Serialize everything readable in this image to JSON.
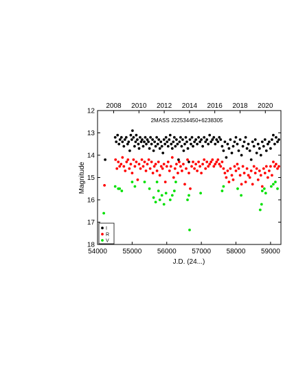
{
  "chart_data": {
    "type": "scatter",
    "title": "2MASS J22534450+6238305",
    "xlabel": "J.D. (24...)",
    "ylabel": "Magnitude",
    "xlim": [
      54000,
      59300
    ],
    "ylim": [
      18,
      12
    ],
    "y_inverted": true,
    "x_ticks": [
      "54000",
      "55000",
      "56000",
      "57000",
      "58000",
      "59000"
    ],
    "x_tick_values": [
      54000,
      55000,
      56000,
      57000,
      58000,
      59000
    ],
    "y_ticks": [
      "12",
      "13",
      "14",
      "15",
      "16",
      "17",
      "18"
    ],
    "y_tick_values": [
      12,
      13,
      14,
      15,
      16,
      17,
      18
    ],
    "top_axis_ticks": [
      "2008",
      "2010",
      "2012",
      "2014",
      "2016",
      "2018",
      "2020"
    ],
    "top_axis_values": [
      54466,
      55197,
      55927,
      56658,
      57388,
      58119,
      58849
    ],
    "grid": false,
    "legend_position": "bottom-left",
    "series": [
      {
        "name": "I",
        "color": "#000000",
        "x": [
          54220,
          54510,
          54540,
          54580,
          54620,
          54650,
          54690,
          54720,
          54760,
          54790,
          54830,
          54870,
          54900,
          54930,
          54960,
          54990,
          55010,
          55040,
          55070,
          55100,
          55120,
          55150,
          55180,
          55200,
          55230,
          55260,
          55290,
          55320,
          55350,
          55380,
          55410,
          55440,
          55470,
          55500,
          55530,
          55560,
          55590,
          55620,
          55650,
          55680,
          55710,
          55740,
          55770,
          55800,
          55830,
          55860,
          55890,
          55920,
          55950,
          55980,
          56010,
          56040,
          56070,
          56100,
          56130,
          56160,
          56190,
          56220,
          56250,
          56280,
          56310,
          56340,
          56370,
          56400,
          56430,
          56460,
          56490,
          56520,
          56550,
          56580,
          56610,
          56640,
          56670,
          56700,
          56730,
          56760,
          56800,
          56840,
          56880,
          56920,
          56960,
          57000,
          57040,
          57080,
          57120,
          57160,
          57200,
          57240,
          57280,
          57320,
          57360,
          57400,
          57440,
          57480,
          57520,
          57560,
          57600,
          57640,
          57680,
          57720,
          57760,
          57800,
          57840,
          57880,
          57920,
          57960,
          58000,
          58040,
          58080,
          58120,
          58160,
          58200,
          58240,
          58280,
          58320,
          58360,
          58400,
          58440,
          58480,
          58520,
          58560,
          58600,
          58640,
          58680,
          58720,
          58760,
          58800,
          58840,
          58880,
          58920,
          58960,
          59000,
          59040,
          59080,
          59120,
          59160,
          59200,
          59240
        ],
        "y": [
          14.2,
          13.2,
          13.4,
          13.1,
          13.5,
          13.3,
          13.2,
          13.4,
          13.6,
          13.3,
          13.2,
          13.5,
          13.4,
          13.8,
          13.1,
          13.3,
          12.9,
          13.2,
          13.6,
          13.4,
          13.1,
          13.3,
          13.5,
          13.7,
          13.2,
          13.4,
          13.3,
          13.6,
          13.4,
          13.2,
          13.5,
          13.3,
          13.4,
          13.7,
          13.2,
          13.5,
          13.3,
          13.8,
          13.4,
          13.6,
          13.2,
          13.5,
          13.3,
          13.7,
          13.4,
          13.6,
          13.9,
          13.3,
          13.5,
          13.2,
          13.4,
          13.6,
          13.3,
          13.1,
          13.5,
          13.7,
          13.4,
          13.2,
          13.6,
          13.3,
          13.5,
          14.2,
          13.4,
          13.2,
          13.6,
          13.3,
          13.8,
          13.5,
          13.2,
          13.4,
          13.7,
          14.3,
          13.3,
          13.5,
          13.2,
          13.6,
          13.4,
          13.3,
          13.5,
          13.2,
          13.4,
          13.3,
          13.6,
          13.2,
          13.4,
          13.3,
          13.5,
          13.1,
          13.4,
          13.3,
          13.2,
          13.5,
          13.3,
          13.4,
          13.2,
          13.3,
          13.6,
          13.8,
          13.4,
          14.1,
          13.5,
          13.7,
          13.3,
          13.9,
          13.6,
          13.4,
          13.2,
          13.5,
          13.8,
          13.3,
          14.0,
          13.6,
          13.4,
          13.2,
          13.7,
          13.5,
          13.8,
          14.2,
          13.4,
          13.6,
          13.3,
          13.9,
          13.5,
          13.7,
          14.0,
          13.4,
          13.6,
          13.3,
          13.8,
          13.5,
          13.4,
          13.7,
          13.3,
          13.1,
          13.5,
          13.2,
          13.4,
          13.3
        ]
      },
      {
        "name": "R",
        "color": "#ff0000",
        "x": [
          54200,
          54520,
          54560,
          54600,
          54640,
          54680,
          54720,
          54760,
          54800,
          54840,
          54880,
          54920,
          54960,
          55000,
          55040,
          55080,
          55120,
          55160,
          55200,
          55240,
          55280,
          55320,
          55360,
          55400,
          55440,
          55480,
          55520,
          55560,
          55600,
          55640,
          55680,
          55720,
          55760,
          55800,
          55840,
          55880,
          55920,
          55960,
          56000,
          56040,
          56080,
          56120,
          56160,
          56200,
          56240,
          56280,
          56320,
          56360,
          56400,
          56440,
          56480,
          56520,
          56560,
          56600,
          56640,
          56680,
          56720,
          56760,
          56800,
          56840,
          56880,
          56920,
          56960,
          57000,
          57040,
          57080,
          57120,
          57160,
          57200,
          57240,
          57280,
          57320,
          57360,
          57400,
          57440,
          57480,
          57520,
          57560,
          57600,
          57640,
          57680,
          57720,
          57760,
          57800,
          57840,
          57880,
          57920,
          57960,
          58000,
          58040,
          58080,
          58120,
          58160,
          58200,
          58240,
          58280,
          58320,
          58360,
          58400,
          58440,
          58480,
          58520,
          58560,
          58600,
          58640,
          58680,
          58720,
          58760,
          58800,
          58840,
          58880,
          58920,
          58960,
          59000,
          59040,
          59080,
          59120,
          59160,
          59200,
          59240
        ],
        "y": [
          15.35,
          14.2,
          14.6,
          14.3,
          14.5,
          14.4,
          14.1,
          14.5,
          14.7,
          14.3,
          14.2,
          14.6,
          14.4,
          14.8,
          14.2,
          14.5,
          14.3,
          15.1,
          14.4,
          14.6,
          14.2,
          14.5,
          14.3,
          14.7,
          14.4,
          14.2,
          14.6,
          14.3,
          14.8,
          14.5,
          14.4,
          14.7,
          14.3,
          14.9,
          14.5,
          14.6,
          14.4,
          15.2,
          14.5,
          14.3,
          14.7,
          14.5,
          14.1,
          15.0,
          14.6,
          14.4,
          14.8,
          14.3,
          14.5,
          14.7,
          14.4,
          15.3,
          14.6,
          14.2,
          14.8,
          15.5,
          14.5,
          14.3,
          14.6,
          14.4,
          14.7,
          14.3,
          14.5,
          14.8,
          14.4,
          14.2,
          14.6,
          14.3,
          14.5,
          14.4,
          14.3,
          14.2,
          14.5,
          14.4,
          14.3,
          14.2,
          14.4,
          14.5,
          14.3,
          14.6,
          14.8,
          15.0,
          14.7,
          15.2,
          14.6,
          14.9,
          15.1,
          14.5,
          14.7,
          14.4,
          14.6,
          14.9,
          15.3,
          14.5,
          14.8,
          15.2,
          14.6,
          14.9,
          15.0,
          14.7,
          15.3,
          14.5,
          14.8,
          14.6,
          15.1,
          14.7,
          14.9,
          15.4,
          14.6,
          14.8,
          14.5,
          15.0,
          14.7,
          14.5,
          14.9,
          14.3,
          14.5,
          14.4,
          14.6,
          14.5
        ]
      },
      {
        "name": "V",
        "color": "#00e000",
        "x": [
          54180,
          54510,
          54600,
          54640,
          54700,
          55000,
          55080,
          55360,
          55500,
          55620,
          55680,
          55720,
          55760,
          55800,
          55860,
          55920,
          55980,
          56100,
          56160,
          56220,
          56260,
          56600,
          56640,
          56660,
          56980,
          57600,
          57640,
          58050,
          58150,
          58700,
          58740,
          58760,
          58820,
          58860,
          59020,
          59080,
          59140,
          59200
        ],
        "y": [
          16.6,
          15.4,
          15.5,
          15.5,
          15.6,
          15.2,
          15.4,
          15.2,
          15.5,
          15.9,
          16.1,
          15.2,
          15.6,
          16.0,
          15.8,
          16.2,
          15.7,
          16.0,
          15.8,
          15.6,
          15.2,
          16.0,
          15.8,
          17.35,
          15.7,
          15.6,
          15.4,
          15.5,
          15.8,
          16.45,
          16.2,
          15.6,
          15.5,
          15.7,
          15.4,
          15.3,
          15.2,
          15.5
        ]
      }
    ]
  }
}
